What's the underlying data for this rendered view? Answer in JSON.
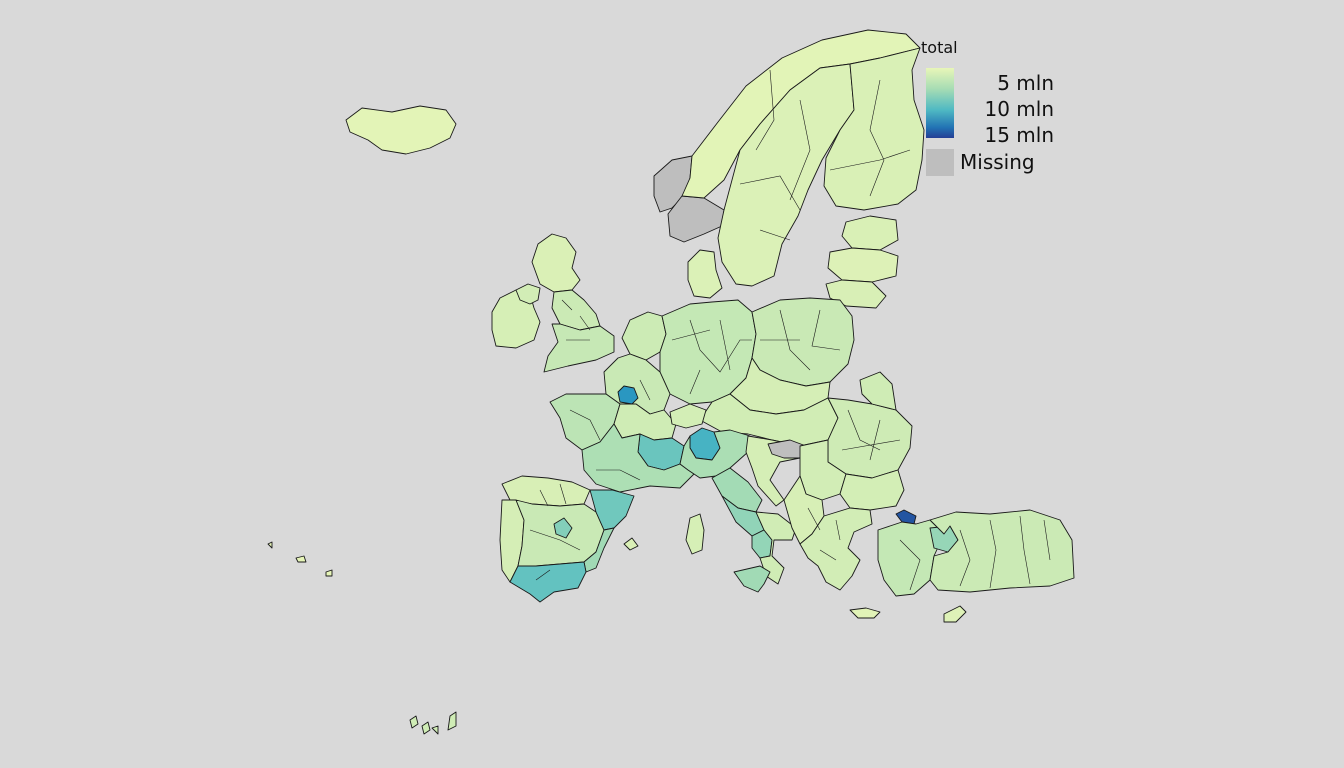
{
  "legend": {
    "title": "total",
    "ticks": [
      "5 mln",
      "10 mln",
      "15 mln"
    ],
    "missing_label": "Missing",
    "scale_min": 0,
    "scale_max": 16.5,
    "scale_unit": "mln"
  },
  "colors": {
    "background": "#d9d9d9",
    "missing": "#bebebe",
    "outline": "#1a1a1a",
    "ramp": [
      "#e8f6b8",
      "#cdebb5",
      "#a6dcb4",
      "#7ccdbb",
      "#4fb9c3",
      "#2c9fc4",
      "#2273b4",
      "#243f95"
    ]
  },
  "chart_data": {
    "type": "choropleth",
    "variable": "total",
    "unit": "mln",
    "regions": [
      {
        "id": "iceland",
        "value": 0.4
      },
      {
        "id": "norway-west",
        "value": null
      },
      {
        "id": "norway-south",
        "value": null
      },
      {
        "id": "norway-north",
        "value": 0.5
      },
      {
        "id": "sweden",
        "value": 1.1
      },
      {
        "id": "finland",
        "value": 1.3
      },
      {
        "id": "estonia",
        "value": 1.3
      },
      {
        "id": "latvia",
        "value": 1.0
      },
      {
        "id": "lithuania",
        "value": 1.4
      },
      {
        "id": "scotland",
        "value": 1.2
      },
      {
        "id": "ireland",
        "value": 1.6
      },
      {
        "id": "northern-ireland",
        "value": 1.9
      },
      {
        "id": "england-north",
        "value": 2.5
      },
      {
        "id": "england-south",
        "value": 2.8
      },
      {
        "id": "denmark",
        "value": 1.1
      },
      {
        "id": "benelux",
        "value": 2.4
      },
      {
        "id": "germany",
        "value": 2.9
      },
      {
        "id": "poland",
        "value": 2.6
      },
      {
        "id": "czech-slovakia",
        "value": 1.7
      },
      {
        "id": "austria-hungary",
        "value": 2.0
      },
      {
        "id": "romania",
        "value": 2.3
      },
      {
        "id": "moldova-east",
        "value": 2.2
      },
      {
        "id": "france-north",
        "value": 2.6
      },
      {
        "id": "ile-de-france",
        "value": 12.2
      },
      {
        "id": "france-west",
        "value": 3.4
      },
      {
        "id": "france-central",
        "value": 2.2
      },
      {
        "id": "auvergne-rhone-alpes",
        "value": 8.0
      },
      {
        "id": "france-south",
        "value": 4.3
      },
      {
        "id": "switzerland",
        "value": 1.8
      },
      {
        "id": "lombardy",
        "value": 10.0
      },
      {
        "id": "italy-north",
        "value": 4.4
      },
      {
        "id": "italy-central",
        "value": 4.9
      },
      {
        "id": "lazio",
        "value": 5.9
      },
      {
        "id": "campania",
        "value": 5.8
      },
      {
        "id": "italy-south",
        "value": 2.1
      },
      {
        "id": "sicily",
        "value": 5.0
      },
      {
        "id": "sardinia",
        "value": 1.6
      },
      {
        "id": "slovenia-croatia",
        "value": 1.7
      },
      {
        "id": "bosnia",
        "value": null
      },
      {
        "id": "serbia",
        "value": 1.9
      },
      {
        "id": "montenegro-albania-macedonia",
        "value": 1.5
      },
      {
        "id": "bulgaria",
        "value": 1.8
      },
      {
        "id": "greece",
        "value": 1.9
      },
      {
        "id": "crete",
        "value": 0.6
      },
      {
        "id": "cyprus",
        "value": 0.9
      },
      {
        "id": "istanbul",
        "value": 15.5
      },
      {
        "id": "turkey-west",
        "value": 2.9
      },
      {
        "id": "ankara",
        "value": 5.6
      },
      {
        "id": "turkey-east",
        "value": 2.5
      },
      {
        "id": "galicia-north",
        "value": 1.4
      },
      {
        "id": "portugal",
        "value": 1.7
      },
      {
        "id": "spain-central",
        "value": 2.6
      },
      {
        "id": "madrid",
        "value": 6.7
      },
      {
        "id": "catalonia",
        "value": 7.7
      },
      {
        "id": "valencia",
        "value": 5.0
      },
      {
        "id": "andalusia",
        "value": 8.4
      },
      {
        "id": "balearic",
        "value": 1.2
      },
      {
        "id": "canary-islands",
        "value": 2.2
      },
      {
        "id": "azores",
        "value": 0.2
      }
    ]
  }
}
